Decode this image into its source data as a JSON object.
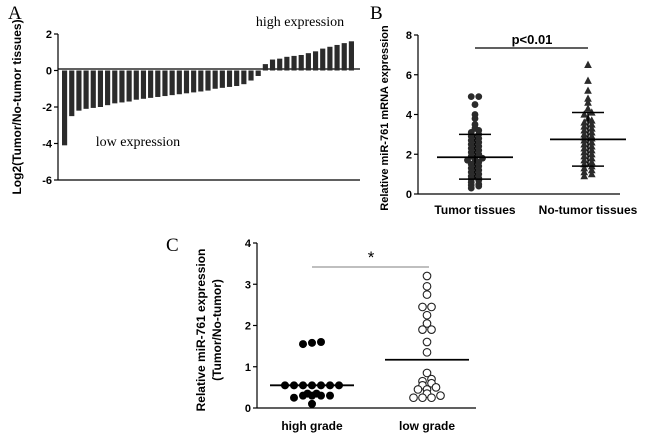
{
  "chart_data": [
    {
      "panel_label": "A",
      "type": "bar",
      "ylabel": "Log2(Tumor/No-tumor tissues)",
      "ylim": [
        -6,
        2
      ],
      "yticks": [
        "2",
        "0",
        "-2",
        "-4",
        "-6"
      ],
      "annotations": {
        "high": "high expression",
        "low": "low expression"
      },
      "values": [
        -4.1,
        -2.5,
        -2.2,
        -2.1,
        -2.05,
        -2.0,
        -1.9,
        -1.8,
        -1.75,
        -1.7,
        -1.6,
        -1.55,
        -1.5,
        -1.45,
        -1.4,
        -1.35,
        -1.3,
        -1.25,
        -1.2,
        -1.15,
        -1.1,
        -1.0,
        -0.95,
        -0.9,
        -0.85,
        -0.75,
        -0.55,
        -0.3,
        0.35,
        0.6,
        0.65,
        0.75,
        0.8,
        0.85,
        0.95,
        1.05,
        1.2,
        1.3,
        1.4,
        1.5,
        1.6
      ]
    },
    {
      "panel_label": "B",
      "type": "scatter",
      "ylabel": "Relative miR-761 mRNA expression",
      "ylim": [
        0,
        8
      ],
      "yticks": [
        "8",
        "6",
        "4",
        "2",
        "0"
      ],
      "categories": [
        "Tumor tissues",
        "No-tumor tissues"
      ],
      "significance": "p<0.01",
      "series": [
        {
          "name": "Tumor tissues",
          "marker": "circle",
          "mean": 1.85,
          "sd_low": 0.75,
          "sd_high": 3.0,
          "values": [
            4.9,
            4.9,
            4.5,
            4.0,
            3.8,
            3.5,
            3.3,
            3.2,
            3.1,
            3.0,
            2.9,
            2.8,
            2.7,
            2.6,
            2.5,
            2.4,
            2.3,
            2.2,
            2.1,
            2.0,
            1.9,
            1.8,
            1.75,
            1.7,
            1.6,
            1.5,
            1.4,
            1.3,
            1.2,
            1.1,
            1.0,
            0.9,
            0.8,
            0.75,
            0.7,
            0.6,
            0.5,
            0.45,
            0.4,
            0.3
          ]
        },
        {
          "name": "No-tumor tissues",
          "marker": "triangle",
          "mean": 2.75,
          "sd_low": 1.4,
          "sd_high": 4.1,
          "values": [
            6.5,
            5.7,
            5.2,
            4.8,
            4.6,
            4.3,
            4.1,
            4.0,
            3.8,
            3.7,
            3.6,
            3.5,
            3.4,
            3.3,
            3.2,
            3.1,
            3.0,
            2.9,
            2.85,
            2.8,
            2.7,
            2.6,
            2.5,
            2.4,
            2.3,
            2.2,
            2.1,
            2.0,
            1.9,
            1.8,
            1.7,
            1.6,
            1.5,
            1.4,
            1.3,
            1.2,
            1.1,
            1.0,
            0.9
          ]
        }
      ]
    },
    {
      "panel_label": "C",
      "type": "scatter",
      "ylabel": "Relative miR-761 expression (Tumor/No-tumor)",
      "ylabel_line1": "Relative miR-761 expression",
      "ylabel_line2": "(Tumor/No-tumor)",
      "ylim": [
        0,
        4
      ],
      "yticks": [
        "4",
        "3",
        "2",
        "1",
        "0"
      ],
      "categories": [
        "high grade",
        "low grade"
      ],
      "significance": "*",
      "series": [
        {
          "name": "high grade",
          "marker": "filled-circle",
          "mean": 0.55,
          "values": [
            1.6,
            1.58,
            1.55,
            0.55,
            0.55,
            0.55,
            0.55,
            0.55,
            0.55,
            0.55,
            0.35,
            0.35,
            0.3,
            0.3,
            0.3,
            0.3,
            0.25,
            0.1
          ]
        },
        {
          "name": "low grade",
          "marker": "open-circle",
          "mean": 1.17,
          "values": [
            3.2,
            2.95,
            2.75,
            2.45,
            2.45,
            2.25,
            2.05,
            1.9,
            1.9,
            1.6,
            1.35,
            0.85,
            0.7,
            0.65,
            0.6,
            0.55,
            0.5,
            0.45,
            0.45,
            0.35,
            0.3,
            0.25,
            0.25,
            0.25
          ]
        }
      ]
    }
  ]
}
